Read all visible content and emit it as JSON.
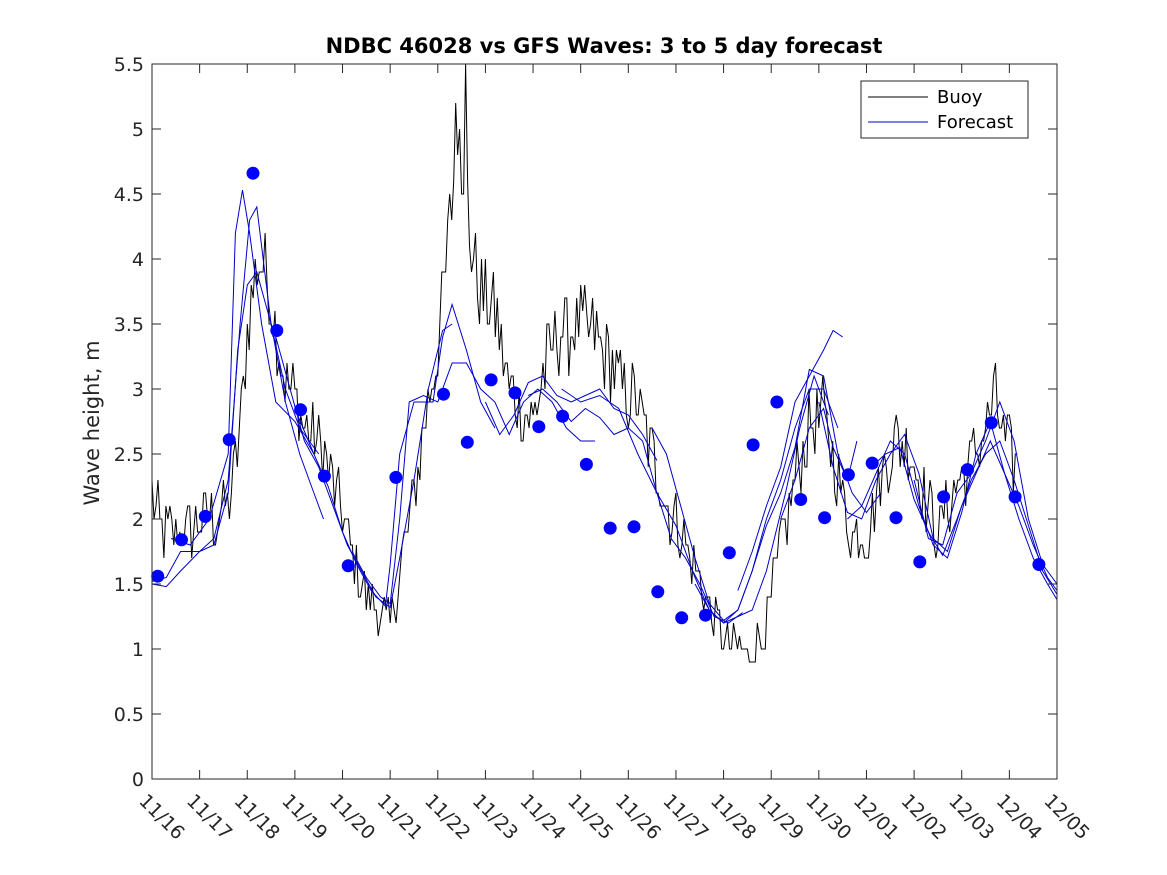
{
  "chart_data": {
    "type": "line",
    "title": "NDBC 46028 vs GFS Waves: 3 to 5 day forecast",
    "xlabel": "",
    "ylabel": "Wave height, m",
    "xlim": [
      0,
      19
    ],
    "ylim": [
      0,
      5.5
    ],
    "x_tick_labels": [
      "11/16",
      "11/17",
      "11/18",
      "11/19",
      "11/20",
      "11/21",
      "11/22",
      "11/23",
      "11/24",
      "11/25",
      "11/26",
      "11/27",
      "11/28",
      "11/29",
      "11/30",
      "12/01",
      "12/02",
      "12/03",
      "12/04",
      "12/05"
    ],
    "y_ticks": [
      0,
      0.5,
      1,
      1.5,
      2,
      2.5,
      3,
      3.5,
      4,
      4.5,
      5,
      5.5
    ],
    "y_tick_labels": [
      "0",
      "0.5",
      "1",
      "1.5",
      "2",
      "2.5",
      "3",
      "3.5",
      "4",
      "4.5",
      "5",
      "5.5"
    ],
    "legend": {
      "position": "top-right",
      "entries": [
        "Buoy",
        "Forecast"
      ]
    },
    "colors": {
      "buoy": "#000000",
      "forecast": "#0000cc",
      "markers": "#0000ff"
    },
    "buoy_anchors": [
      [
        0.0,
        2.2
      ],
      [
        0.2,
        1.9
      ],
      [
        0.5,
        1.9
      ],
      [
        0.8,
        1.9
      ],
      [
        1.0,
        2.0
      ],
      [
        1.3,
        2.0
      ],
      [
        1.6,
        2.1
      ],
      [
        1.8,
        2.5
      ],
      [
        2.0,
        3.4
      ],
      [
        2.2,
        4.0
      ],
      [
        2.4,
        3.9
      ],
      [
        2.6,
        3.5
      ],
      [
        2.8,
        3.0
      ],
      [
        3.0,
        2.95
      ],
      [
        3.2,
        2.7
      ],
      [
        3.5,
        2.6
      ],
      [
        3.8,
        2.3
      ],
      [
        4.0,
        2.0
      ],
      [
        4.2,
        1.7
      ],
      [
        4.5,
        1.4
      ],
      [
        4.8,
        1.25
      ],
      [
        5.0,
        1.2
      ],
      [
        5.2,
        1.6
      ],
      [
        5.5,
        2.2
      ],
      [
        5.8,
        2.9
      ],
      [
        6.0,
        3.3
      ],
      [
        6.2,
        4.0
      ],
      [
        6.4,
        5.0
      ],
      [
        6.55,
        4.8
      ],
      [
        6.7,
        4.1
      ],
      [
        6.9,
        3.7
      ],
      [
        7.2,
        3.6
      ],
      [
        7.5,
        3.0
      ],
      [
        7.8,
        2.8
      ],
      [
        8.0,
        2.75
      ],
      [
        8.2,
        3.1
      ],
      [
        8.5,
        3.4
      ],
      [
        8.8,
        3.45
      ],
      [
        9.0,
        3.5
      ],
      [
        9.3,
        3.4
      ],
      [
        9.6,
        3.2
      ],
      [
        9.9,
        3.0
      ],
      [
        10.2,
        2.9
      ],
      [
        10.5,
        2.5
      ],
      [
        10.8,
        2.1
      ],
      [
        11.1,
        1.9
      ],
      [
        11.4,
        1.6
      ],
      [
        11.7,
        1.3
      ],
      [
        12.0,
        1.1
      ],
      [
        12.3,
        1.0
      ],
      [
        12.6,
        0.95
      ],
      [
        12.9,
        1.2
      ],
      [
        13.2,
        1.8
      ],
      [
        13.5,
        2.3
      ],
      [
        13.8,
        2.7
      ],
      [
        14.1,
        2.8
      ],
      [
        14.4,
        2.3
      ],
      [
        14.7,
        1.9
      ],
      [
        15.0,
        1.85
      ],
      [
        15.3,
        2.3
      ],
      [
        15.6,
        2.6
      ],
      [
        15.9,
        2.55
      ],
      [
        16.2,
        2.2
      ],
      [
        16.5,
        1.9
      ],
      [
        16.8,
        2.2
      ],
      [
        17.1,
        2.4
      ],
      [
        17.4,
        2.6
      ],
      [
        17.7,
        2.9
      ],
      [
        18.0,
        2.5
      ],
      [
        18.2,
        2.35
      ]
    ],
    "forecast_runs": [
      [
        [
          0.0,
          1.52
        ],
        [
          0.3,
          1.55
        ],
        [
          0.6,
          1.75
        ],
        [
          1.0,
          1.75
        ],
        [
          1.3,
          1.8
        ],
        [
          1.6,
          2.2
        ],
        [
          1.8,
          3.3
        ],
        [
          2.0,
          3.8
        ],
        [
          2.2,
          3.9
        ],
        [
          2.5,
          3.5
        ],
        [
          2.8,
          3.0
        ],
        [
          3.1,
          2.7
        ],
        [
          3.5,
          2.5
        ]
      ],
      [
        [
          0.0,
          1.5
        ],
        [
          0.3,
          1.48
        ],
        [
          0.6,
          1.6
        ],
        [
          1.0,
          1.75
        ],
        [
          1.3,
          1.85
        ],
        [
          1.6,
          2.3
        ],
        [
          1.85,
          3.5
        ],
        [
          2.05,
          4.3
        ],
        [
          2.2,
          4.4
        ],
        [
          2.5,
          3.5
        ],
        [
          2.8,
          2.9
        ],
        [
          3.1,
          2.5
        ],
        [
          3.4,
          2.2
        ],
        [
          3.6,
          2.0
        ]
      ],
      [
        [
          0.4,
          1.85
        ],
        [
          0.8,
          1.8
        ],
        [
          1.2,
          2.0
        ],
        [
          1.6,
          2.5
        ],
        [
          1.75,
          4.2
        ],
        [
          1.9,
          4.53
        ],
        [
          2.05,
          4.2
        ],
        [
          2.3,
          3.5
        ],
        [
          2.6,
          2.9
        ],
        [
          3.0,
          2.75
        ],
        [
          3.4,
          2.5
        ]
      ],
      [
        [
          2.6,
          3.4
        ],
        [
          2.9,
          3.0
        ],
        [
          3.2,
          2.6
        ],
        [
          3.5,
          2.4
        ],
        [
          3.8,
          2.1
        ],
        [
          4.1,
          1.8
        ],
        [
          4.4,
          1.6
        ],
        [
          4.7,
          1.4
        ],
        [
          5.0,
          1.32
        ],
        [
          5.2,
          1.7
        ],
        [
          5.5,
          2.3
        ],
        [
          5.8,
          3.0
        ],
        [
          6.1,
          3.45
        ],
        [
          6.3,
          3.5
        ]
      ],
      [
        [
          3.0,
          2.85
        ],
        [
          3.4,
          2.5
        ],
        [
          3.7,
          2.25
        ],
        [
          4.0,
          1.9
        ],
        [
          4.3,
          1.65
        ],
        [
          4.6,
          1.45
        ],
        [
          4.9,
          1.33
        ],
        [
          5.0,
          1.65
        ],
        [
          5.2,
          2.5
        ],
        [
          5.5,
          2.9
        ],
        [
          5.9,
          2.9
        ],
        [
          6.1,
          3.4
        ],
        [
          6.3,
          3.65
        ],
        [
          6.6,
          3.3
        ],
        [
          6.9,
          2.9
        ],
        [
          7.2,
          2.7
        ]
      ],
      [
        [
          4.2,
          1.75
        ],
        [
          4.5,
          1.55
        ],
        [
          4.8,
          1.4
        ],
        [
          5.0,
          1.35
        ],
        [
          5.2,
          2.0
        ],
        [
          5.4,
          2.9
        ],
        [
          5.7,
          2.95
        ],
        [
          6.0,
          2.9
        ],
        [
          6.3,
          3.2
        ],
        [
          6.6,
          3.2
        ],
        [
          6.9,
          3.0
        ],
        [
          7.2,
          2.9
        ],
        [
          7.5,
          2.65
        ],
        [
          7.8,
          2.9
        ],
        [
          8.1,
          3.0
        ],
        [
          8.4,
          2.9
        ],
        [
          8.7,
          2.7
        ],
        [
          9.0,
          2.6
        ],
        [
          9.3,
          2.6
        ]
      ],
      [
        [
          7.0,
          2.9
        ],
        [
          7.3,
          2.65
        ],
        [
          7.6,
          2.8
        ],
        [
          7.9,
          3.05
        ],
        [
          8.2,
          3.1
        ],
        [
          8.5,
          2.95
        ],
        [
          8.8,
          2.9
        ],
        [
          9.1,
          2.95
        ],
        [
          9.4,
          3.0
        ],
        [
          9.7,
          2.85
        ],
        [
          10.0,
          2.8
        ],
        [
          10.3,
          2.65
        ],
        [
          10.6,
          2.45
        ]
      ],
      [
        [
          7.9,
          2.95
        ],
        [
          8.2,
          3.0
        ],
        [
          8.5,
          2.9
        ],
        [
          8.8,
          2.75
        ],
        [
          9.1,
          2.85
        ],
        [
          9.4,
          2.78
        ],
        [
          9.7,
          2.65
        ],
        [
          10.0,
          2.7
        ],
        [
          10.3,
          2.6
        ],
        [
          10.6,
          2.2
        ],
        [
          10.9,
          1.85
        ],
        [
          11.2,
          1.7
        ],
        [
          11.5,
          1.5
        ],
        [
          11.8,
          1.25
        ],
        [
          12.1,
          1.2
        ],
        [
          12.4,
          1.28
        ]
      ],
      [
        [
          8.6,
          3.0
        ],
        [
          9.0,
          2.9
        ],
        [
          9.4,
          2.95
        ],
        [
          9.8,
          2.85
        ],
        [
          10.2,
          2.5
        ],
        [
          10.6,
          2.2
        ],
        [
          11.0,
          1.95
        ],
        [
          11.4,
          1.55
        ],
        [
          11.7,
          1.3
        ],
        [
          12.0,
          1.2
        ],
        [
          12.3,
          1.25
        ],
        [
          12.6,
          1.3
        ],
        [
          12.9,
          1.6
        ],
        [
          13.3,
          2.2
        ],
        [
          13.6,
          2.7
        ],
        [
          13.9,
          3.1
        ],
        [
          14.2,
          2.8
        ]
      ],
      [
        [
          10.5,
          2.7
        ],
        [
          10.8,
          2.5
        ],
        [
          11.1,
          2.1
        ],
        [
          11.4,
          1.7
        ],
        [
          11.7,
          1.35
        ],
        [
          12.0,
          1.22
        ],
        [
          12.3,
          1.3
        ],
        [
          12.6,
          1.6
        ],
        [
          12.9,
          2.0
        ],
        [
          13.2,
          2.3
        ],
        [
          13.5,
          2.7
        ],
        [
          13.8,
          3.0
        ],
        [
          14.1,
          3.0
        ],
        [
          14.4,
          2.7
        ]
      ],
      [
        [
          11.4,
          1.5
        ],
        [
          11.7,
          1.3
        ],
        [
          12.0,
          1.2
        ],
        [
          12.3,
          1.3
        ],
        [
          12.6,
          1.6
        ],
        [
          12.9,
          1.95
        ],
        [
          13.2,
          2.2
        ],
        [
          13.5,
          2.55
        ],
        [
          13.8,
          3.15
        ],
        [
          14.1,
          3.1
        ],
        [
          14.4,
          2.5
        ],
        [
          14.7,
          2.2
        ],
        [
          15.0,
          2.05
        ],
        [
          15.3,
          2.2
        ]
      ],
      [
        [
          12.3,
          1.45
        ],
        [
          12.6,
          1.75
        ],
        [
          12.9,
          2.1
        ],
        [
          13.2,
          2.4
        ],
        [
          13.5,
          2.9
        ],
        [
          13.8,
          3.1
        ],
        [
          14.1,
          3.3
        ],
        [
          14.3,
          3.45
        ],
        [
          14.5,
          3.4
        ]
      ],
      [
        [
          13.2,
          2.0
        ],
        [
          13.5,
          2.3
        ],
        [
          13.8,
          2.7
        ],
        [
          14.1,
          2.85
        ],
        [
          14.3,
          2.55
        ],
        [
          14.6,
          2.3
        ],
        [
          14.8,
          2.6
        ]
      ],
      [
        [
          14.0,
          2.9
        ],
        [
          14.3,
          2.4
        ],
        [
          14.6,
          2.05
        ],
        [
          14.9,
          2.0
        ],
        [
          15.2,
          2.3
        ],
        [
          15.5,
          2.5
        ],
        [
          15.8,
          2.65
        ],
        [
          16.1,
          2.35
        ],
        [
          16.4,
          1.85
        ],
        [
          16.7,
          1.75
        ],
        [
          17.0,
          2.1
        ],
        [
          17.3,
          2.35
        ],
        [
          17.6,
          2.6
        ],
        [
          17.9,
          2.35
        ],
        [
          18.2,
          2.1
        ],
        [
          18.5,
          1.8
        ],
        [
          18.8,
          1.55
        ],
        [
          19.0,
          1.45
        ]
      ],
      [
        [
          14.6,
          2.0
        ],
        [
          14.9,
          2.1
        ],
        [
          15.2,
          2.35
        ],
        [
          15.5,
          2.6
        ],
        [
          15.8,
          2.5
        ],
        [
          16.1,
          2.1
        ],
        [
          16.4,
          1.8
        ],
        [
          16.7,
          1.7
        ],
        [
          17.0,
          2.05
        ],
        [
          17.3,
          2.5
        ],
        [
          17.6,
          2.75
        ],
        [
          17.9,
          2.35
        ],
        [
          18.2,
          2.0
        ],
        [
          18.5,
          1.7
        ],
        [
          18.8,
          1.5
        ],
        [
          19.0,
          1.38
        ]
      ],
      [
        [
          15.1,
          2.4
        ],
        [
          15.4,
          2.5
        ],
        [
          15.7,
          2.55
        ],
        [
          16.0,
          2.15
        ],
        [
          16.3,
          1.9
        ],
        [
          16.6,
          1.72
        ],
        [
          16.9,
          2.0
        ],
        [
          17.2,
          2.3
        ],
        [
          17.5,
          2.5
        ],
        [
          17.8,
          2.6
        ],
        [
          18.1,
          2.3
        ],
        [
          18.4,
          1.95
        ],
        [
          18.7,
          1.6
        ],
        [
          19.0,
          1.42
        ]
      ],
      [
        [
          16.0,
          2.3
        ],
        [
          16.3,
          1.85
        ],
        [
          16.6,
          1.8
        ],
        [
          16.9,
          2.2
        ],
        [
          17.2,
          2.35
        ],
        [
          17.5,
          2.6
        ],
        [
          17.8,
          2.9
        ],
        [
          18.1,
          2.6
        ],
        [
          18.4,
          2.0
        ],
        [
          18.7,
          1.65
        ],
        [
          19.0,
          1.5
        ]
      ]
    ],
    "forecast_points": [
      [
        0.12,
        1.56
      ],
      [
        0.62,
        1.84
      ],
      [
        1.12,
        2.02
      ],
      [
        1.62,
        2.61
      ],
      [
        2.12,
        4.66
      ],
      [
        2.62,
        3.45
      ],
      [
        3.12,
        2.84
      ],
      [
        3.62,
        2.33
      ],
      [
        4.12,
        1.64
      ],
      [
        5.12,
        2.32
      ],
      [
        6.12,
        2.96
      ],
      [
        6.62,
        2.59
      ],
      [
        7.12,
        3.07
      ],
      [
        7.62,
        2.97
      ],
      [
        8.12,
        2.71
      ],
      [
        8.62,
        2.79
      ],
      [
        9.12,
        2.42
      ],
      [
        9.62,
        1.93
      ],
      [
        10.12,
        1.94
      ],
      [
        10.62,
        1.44
      ],
      [
        11.12,
        1.24
      ],
      [
        11.62,
        1.26
      ],
      [
        12.12,
        1.74
      ],
      [
        12.62,
        2.57
      ],
      [
        13.12,
        2.9
      ],
      [
        13.62,
        2.15
      ],
      [
        14.12,
        2.01
      ],
      [
        14.62,
        2.34
      ],
      [
        15.12,
        2.43
      ],
      [
        15.62,
        2.01
      ],
      [
        16.12,
        1.67
      ],
      [
        16.62,
        2.17
      ],
      [
        17.12,
        2.38
      ],
      [
        17.62,
        2.74
      ],
      [
        18.12,
        2.17
      ],
      [
        18.62,
        1.65
      ]
    ]
  }
}
